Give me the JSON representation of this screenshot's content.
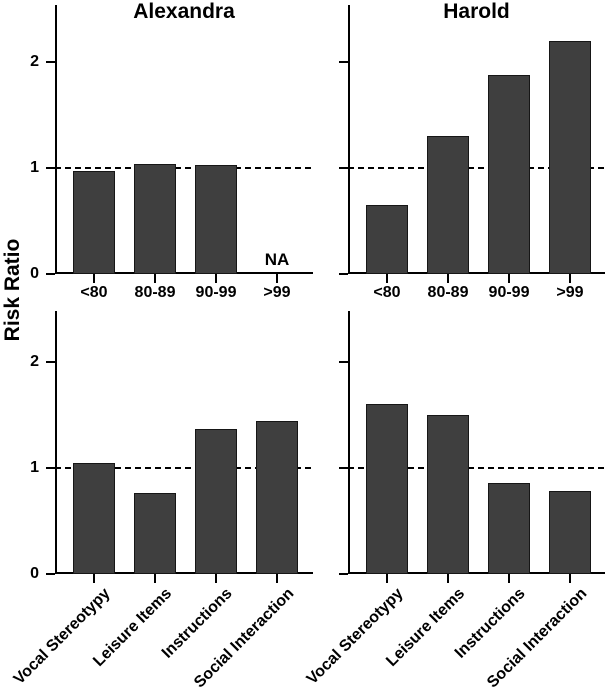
{
  "figure": {
    "ylabel": "Risk Ratio",
    "bar_color": "#3f3f3f",
    "bar_border_color": "#161616",
    "axis_color": "#000000",
    "background": "#ffffff",
    "na_label": "NA"
  },
  "chart_data": [
    {
      "type": "bar",
      "panel": "alexandra-top",
      "title": "Alexandra",
      "row": 0,
      "col": 0,
      "show_title": true,
      "show_ytick_labels": true,
      "categories": [
        "<80",
        "80-89",
        "90-99",
        ">99"
      ],
      "values": [
        0.97,
        1.04,
        1.03,
        null
      ],
      "na_label": "NA",
      "rotate_xlabels": false,
      "ylabel": "Risk Ratio",
      "ylim": [
        0,
        2.5
      ],
      "yticks": [
        0,
        1,
        2
      ],
      "reference_y": 1,
      "grid": false,
      "legend": false
    },
    {
      "type": "bar",
      "panel": "harold-top",
      "title": "Harold",
      "row": 0,
      "col": 1,
      "show_title": true,
      "show_ytick_labels": false,
      "categories": [
        "<80",
        "80-89",
        "90-99",
        ">99"
      ],
      "values": [
        0.65,
        1.3,
        1.88,
        2.2
      ],
      "rotate_xlabels": false,
      "ylabel": "Risk Ratio",
      "ylim": [
        0,
        2.5
      ],
      "yticks": [
        0,
        1,
        2
      ],
      "reference_y": 1,
      "grid": false,
      "legend": false
    },
    {
      "type": "bar",
      "panel": "alexandra-bottom",
      "title": "Alexandra",
      "row": 1,
      "col": 0,
      "show_title": false,
      "show_ytick_labels": true,
      "categories": [
        "Vocal Stereotypy",
        "Leisure Items",
        "Instructions",
        "Social Interaction"
      ],
      "values": [
        1.05,
        0.76,
        1.37,
        1.44
      ],
      "rotate_xlabels": true,
      "ylabel": "Risk Ratio",
      "ylim": [
        0,
        2.5
      ],
      "yticks": [
        0,
        1,
        2
      ],
      "reference_y": 1,
      "grid": false,
      "legend": false
    },
    {
      "type": "bar",
      "panel": "harold-bottom",
      "title": "Harold",
      "row": 1,
      "col": 1,
      "show_title": false,
      "show_ytick_labels": false,
      "categories": [
        "Vocal Stereotypy",
        "Leisure Items",
        "Instructions",
        "Social Interaction"
      ],
      "values": [
        1.6,
        1.5,
        0.86,
        0.78
      ],
      "rotate_xlabels": true,
      "ylabel": "Risk Ratio",
      "ylim": [
        0,
        2.5
      ],
      "yticks": [
        0,
        1,
        2
      ],
      "reference_y": 1,
      "grid": false,
      "legend": false
    }
  ]
}
